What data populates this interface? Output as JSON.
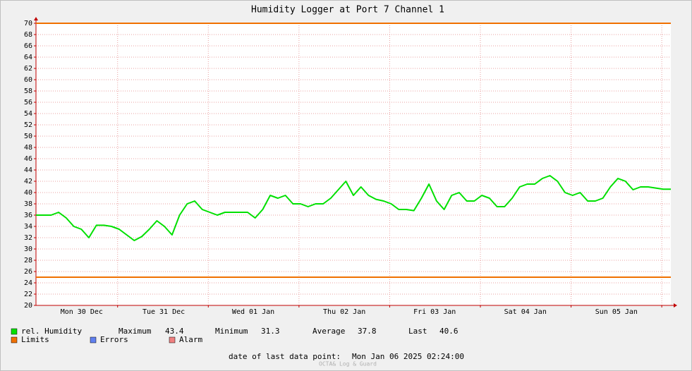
{
  "chart_data": {
    "type": "line",
    "title": "Humidity Logger at Port 7 Channel 1",
    "x": [
      0,
      2,
      4,
      6,
      8,
      10,
      12,
      14,
      16,
      18,
      20,
      22,
      24,
      26,
      28,
      30,
      32,
      34,
      36,
      38,
      40,
      42,
      44,
      46,
      48,
      50,
      52,
      54,
      56,
      58,
      60,
      62,
      64,
      66,
      68,
      70,
      72,
      74,
      76,
      78,
      80,
      82,
      84,
      86,
      88,
      90,
      92,
      94,
      96,
      98,
      100,
      102,
      104,
      106,
      108,
      110,
      112,
      114,
      116,
      118,
      120,
      122,
      124,
      126,
      128,
      130,
      132,
      134,
      136,
      138,
      140,
      142,
      144,
      146,
      148,
      150,
      152,
      154,
      156,
      158,
      160,
      162,
      164,
      166,
      168
    ],
    "series": [
      {
        "name": "rel. Humidity",
        "color": "#00e000",
        "values": [
          36,
          36,
          36,
          36.5,
          35.5,
          34,
          33.5,
          32,
          34.2,
          34.2,
          34,
          33.5,
          32.5,
          31.5,
          32.2,
          33.5,
          35,
          34,
          32.5,
          36,
          38,
          38.5,
          37,
          36.5,
          36,
          36.5,
          36.5,
          36.5,
          36.5,
          35.5,
          37,
          39.5,
          39,
          39.5,
          38,
          38,
          37.5,
          38,
          38,
          39,
          40.5,
          42,
          39.5,
          41,
          39.5,
          38.8,
          38.5,
          38,
          37,
          37,
          36.8,
          39,
          41.5,
          38.5,
          37,
          39.5,
          40,
          38.5,
          38.5,
          39.5,
          39,
          37.5,
          37.5,
          39,
          41,
          41.5,
          41.5,
          42.5,
          43,
          42,
          40,
          39.5,
          40,
          38.5,
          38.5,
          39,
          41,
          42.5,
          42,
          40.5,
          41,
          41,
          40.8,
          40.6,
          40.6
        ]
      }
    ],
    "limits": {
      "name": "Limits",
      "color": "#f07000",
      "values": [
        70,
        25
      ]
    },
    "legend_extra": [
      {
        "name": "Errors",
        "color": "#6080f0"
      },
      {
        "name": "Alarm",
        "color": "#f08080"
      }
    ],
    "stats": [
      {
        "label": "Maximum",
        "value": 43.4
      },
      {
        "label": "Minimum",
        "value": 31.3
      },
      {
        "label": "Average",
        "value": 37.8
      },
      {
        "label": "Last",
        "value": 40.6
      }
    ],
    "xlim": [
      0,
      168
    ],
    "xticks": [
      {
        "value": 12.1,
        "label": "Mon 30 Dec"
      },
      {
        "value": 33.8,
        "label": "Tue 31 Dec"
      },
      {
        "value": 57.5,
        "label": "Wed 01 Jan"
      },
      {
        "value": 81.6,
        "label": "Thu 02 Jan"
      },
      {
        "value": 105.5,
        "label": "Fri 03 Jan"
      },
      {
        "value": 129.5,
        "label": "Sat 04 Jan"
      },
      {
        "value": 153.6,
        "label": "Sun 05 Jan"
      }
    ],
    "xgrid": [
      21.6,
      45.6,
      69.6,
      93.6,
      117.6,
      141.6,
      165.6
    ],
    "ylim": [
      20,
      70
    ],
    "yticks": [
      20,
      22,
      24,
      26,
      28,
      30,
      32,
      34,
      36,
      38,
      40,
      42,
      44,
      46,
      48,
      50,
      52,
      54,
      56,
      58,
      60,
      62,
      64,
      66,
      68,
      70
    ],
    "grid": true,
    "footer_label": "date of last data point:",
    "footer_date": "Mon Jan 06 2025 02:24:00",
    "watermark": "OCTA& Log & Guard"
  }
}
